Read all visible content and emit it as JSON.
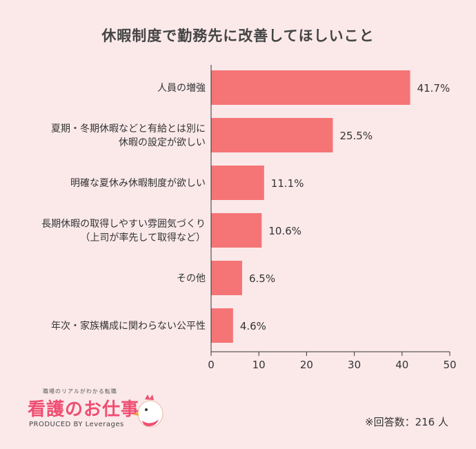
{
  "chart_data": {
    "type": "bar",
    "orientation": "horizontal",
    "title": "休暇制度で勤務先に改善してほしいこと",
    "categories": [
      "人員の増強",
      "夏期・冬期休暇などと有給とは別に\n休暇の設定が欲しい",
      "明確な夏休み休暇制度が欲しい",
      "長期休暇の取得しやすい雰囲気づくり\n（上司が率先して取得など）",
      "その他",
      "年次・家族構成に関わらない公平性"
    ],
    "values": [
      41.7,
      25.5,
      11.1,
      10.6,
      6.5,
      4.6
    ],
    "value_labels": [
      "41.7%",
      "25.5%",
      "11.1%",
      "10.6%",
      "6.5%",
      "4.6%"
    ],
    "xlim": [
      0,
      50
    ],
    "xticks": [
      0,
      10,
      20,
      30,
      40,
      50
    ],
    "grid": false,
    "bar_color": "#f57576"
  },
  "footer": {
    "logo_tagline": "職場のリアルがわかる転職",
    "logo_name": "看護のお仕事",
    "logo_produced": "PRODUCED BY Leverages",
    "respondents": "※回答数：216 人"
  }
}
